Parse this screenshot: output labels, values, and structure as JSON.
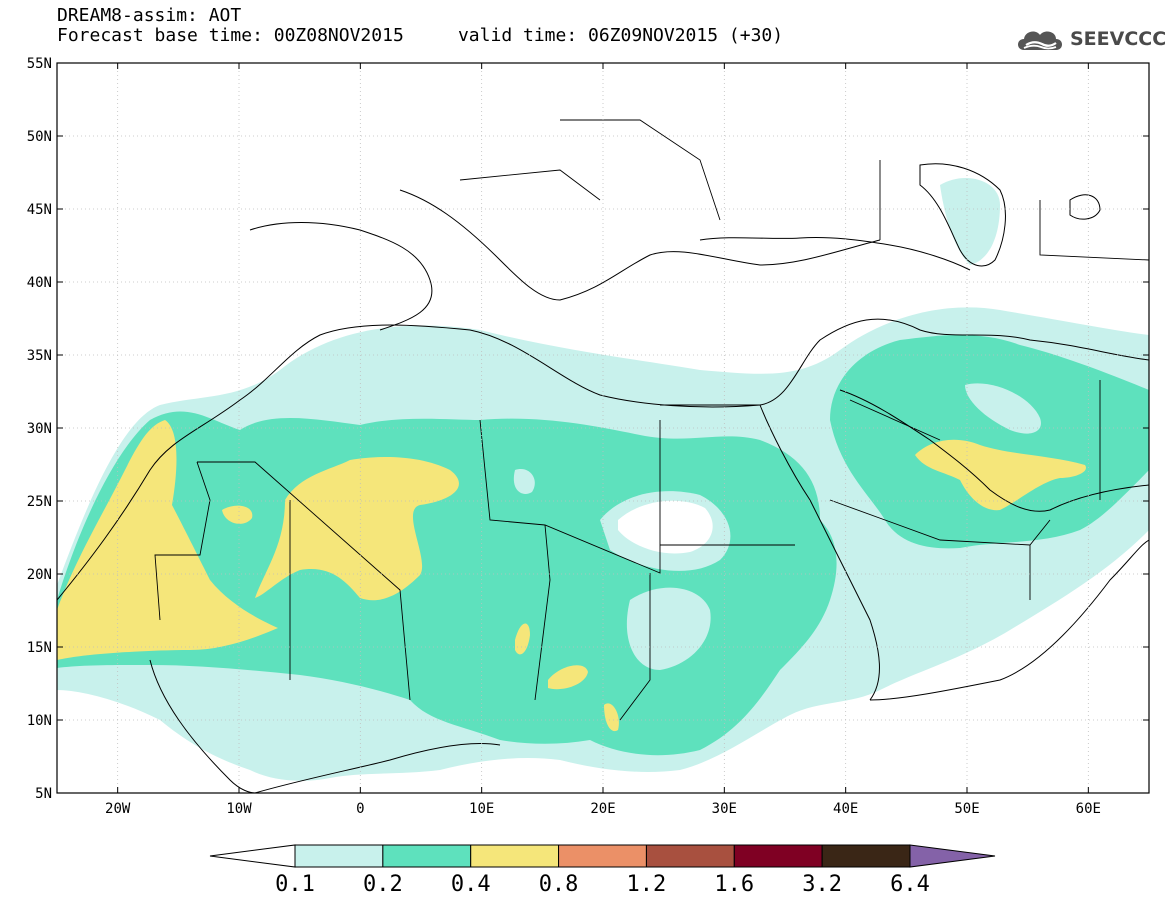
{
  "header": {
    "title_line1": "DREAM8-assim: AOT",
    "title_line2": "Forecast base time: 00Z08NOV2015     valid time: 06Z09NOV2015 (+30)"
  },
  "logo": {
    "text": "SEEVCCC",
    "icon": "cloud-icon"
  },
  "map": {
    "lon_range": [
      -25,
      65
    ],
    "lat_range": [
      5,
      55
    ],
    "lat_labels": [
      "55N",
      "50N",
      "45N",
      "40N",
      "35N",
      "30N",
      "25N",
      "20N",
      "15N",
      "10N",
      "5N"
    ],
    "lon_labels": [
      "20W",
      "10W",
      "0",
      "10E",
      "20E",
      "30E",
      "40E",
      "50E",
      "60E"
    ],
    "grid": "dotted"
  },
  "colorbar": {
    "labels": [
      "0.1",
      "0.2",
      "0.4",
      "0.8",
      "1.2",
      "1.6",
      "3.2",
      "6.4"
    ],
    "colors": [
      "#ffffff",
      "#c8f1ec",
      "#5ee1bd",
      "#f5e67a",
      "#eb9067",
      "#a8503f",
      "#7f0023",
      "#3a2616",
      "#8462a8"
    ]
  }
}
